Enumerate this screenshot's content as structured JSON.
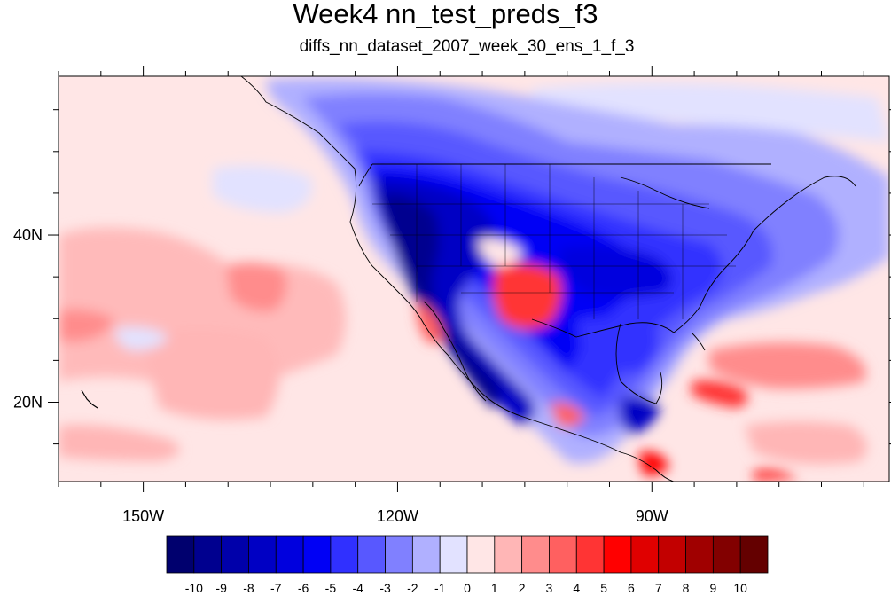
{
  "title": "Week4 nn_test_preds_f3",
  "subtitle": "diffs_nn_dataset_2007_week_30_ens_1_f_3",
  "map": {
    "lon_range": [
      -160,
      -62
    ],
    "lat_range": [
      10.5,
      59
    ],
    "lon_ticks": [
      {
        "value": -150,
        "label": "150W"
      },
      {
        "value": -120,
        "label": "120W"
      },
      {
        "value": -90,
        "label": "90W"
      }
    ],
    "lat_ticks": [
      {
        "value": 40,
        "label": "40N"
      },
      {
        "value": 20,
        "label": "20N"
      }
    ],
    "field": "difference (anomaly) shaded contours"
  },
  "colorbar": {
    "levels": [
      "-10",
      "-9",
      "-8",
      "-7",
      "-6",
      "-5",
      "-4",
      "-3",
      "-2",
      "-1",
      "0",
      "1",
      "2",
      "3",
      "4",
      "5",
      "6",
      "7",
      "8",
      "9",
      "10"
    ],
    "colors": [
      "#00006e",
      "#00008f",
      "#0000aa",
      "#0000c4",
      "#0000de",
      "#0000f5",
      "#3030ff",
      "#5858ff",
      "#8080ff",
      "#b0b0ff",
      "#e2e2ff",
      "#ffe6e6",
      "#ffb6b6",
      "#ff8c8c",
      "#ff6060",
      "#ff3434",
      "#ff0000",
      "#e00000",
      "#c20000",
      "#a00000",
      "#820000",
      "#640000"
    ]
  }
}
